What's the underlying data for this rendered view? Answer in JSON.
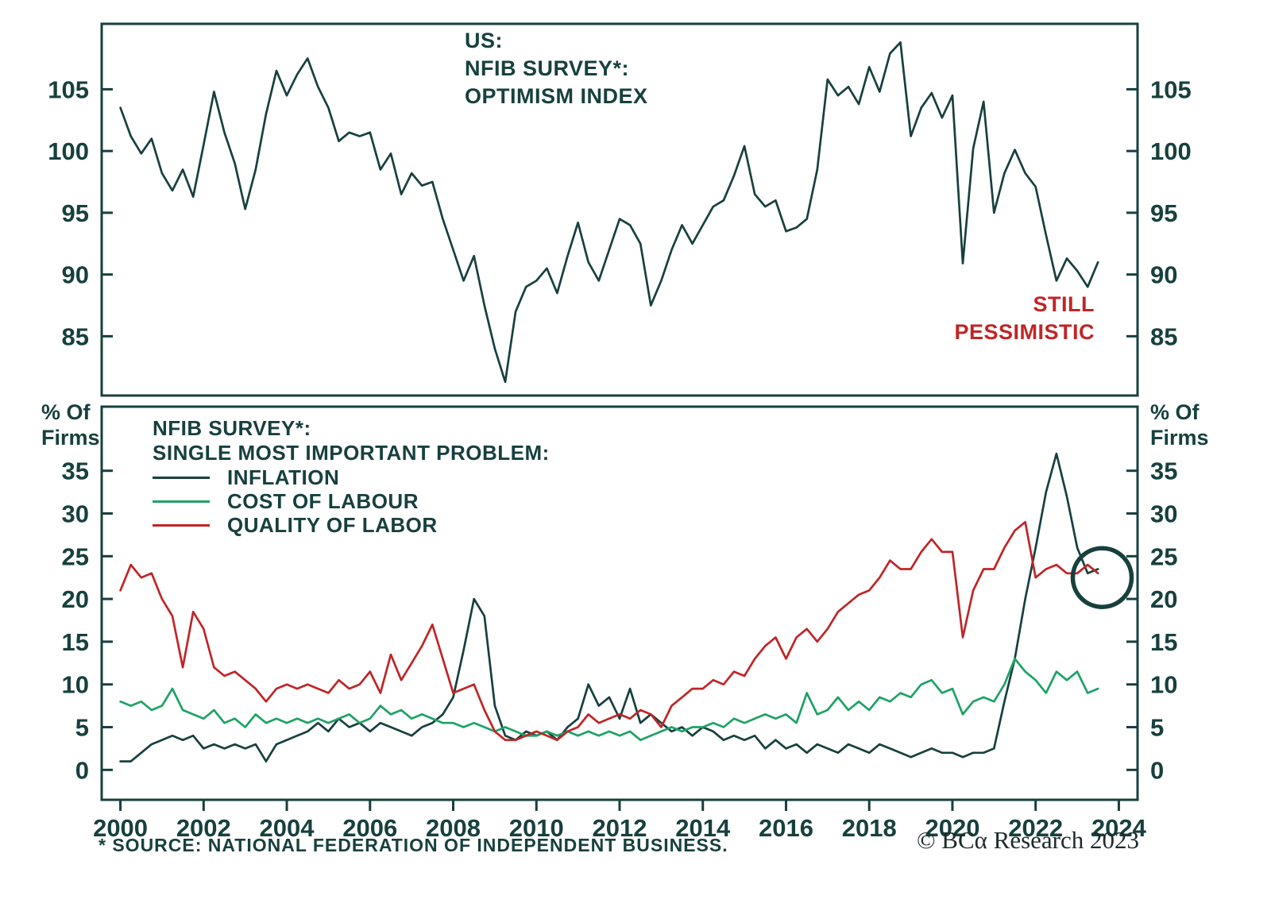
{
  "colors": {
    "dark": "#17403e",
    "green": "#1ea266",
    "red": "#c02527",
    "frame": "#17403e",
    "background": "#ffffff"
  },
  "footer": {
    "source": "* SOURCE: NATIONAL FEDERATION OF INDEPENDENT BUSINESS.",
    "credit": "© BCα Research 2023"
  },
  "chart_data": [
    {
      "type": "line",
      "title_lines": [
        "US:",
        "NFIB SURVEY*:",
        "OPTIMISM INDEX"
      ],
      "annotation": {
        "lines": [
          "STILL",
          "PESSIMISTIC"
        ],
        "color_key": "red",
        "position": "lower-right"
      },
      "xlim": [
        1999.55,
        2024.45
      ],
      "ylim": [
        80.2,
        110.3
      ],
      "yticks": [
        85,
        90,
        95,
        100,
        105
      ],
      "yticks_both_sides": true,
      "xticks": [
        2000,
        2002,
        2004,
        2006,
        2008,
        2010,
        2012,
        2014,
        2016,
        2018,
        2020,
        2022,
        2024
      ],
      "xticks_visible": false,
      "grid": false,
      "x_start": 2000,
      "x_step": 0.25,
      "series": [
        {
          "name": "NFIB OPTIMISM INDEX",
          "color_key": "dark",
          "values": [
            103.5,
            101.2,
            99.8,
            101.0,
            98.2,
            96.8,
            98.5,
            96.3,
            100.5,
            104.8,
            101.5,
            99.0,
            95.3,
            98.5,
            103.0,
            106.5,
            104.5,
            106.2,
            107.5,
            105.2,
            103.5,
            100.8,
            101.5,
            101.2,
            101.5,
            98.5,
            99.8,
            96.5,
            98.2,
            97.2,
            97.5,
            94.5,
            92.0,
            89.5,
            91.5,
            87.5,
            84.0,
            81.3,
            87.0,
            89.0,
            89.5,
            90.5,
            88.5,
            91.5,
            94.2,
            91.0,
            89.5,
            92.0,
            94.5,
            94.0,
            92.5,
            87.5,
            89.5,
            92.0,
            94.0,
            92.5,
            94.0,
            95.5,
            96.0,
            98.0,
            100.4,
            96.5,
            95.5,
            96.0,
            93.5,
            93.8,
            94.5,
            98.5,
            105.8,
            104.5,
            105.2,
            103.8,
            106.8,
            104.8,
            107.9,
            108.8,
            101.2,
            103.5,
            104.7,
            102.7,
            104.5,
            90.9,
            100.2,
            104.0,
            95.0,
            98.2,
            100.1,
            98.2,
            97.1,
            93.2,
            89.5,
            91.3,
            90.3,
            89.0,
            91.0
          ]
        }
      ]
    },
    {
      "type": "line",
      "legend_title_lines": [
        "NFIB SURVEY*:",
        "SINGLE MOST IMPORTANT PROBLEM:"
      ],
      "ylabel_lines": [
        "% Of",
        "Firms"
      ],
      "legend_position": "upper-left",
      "xlim": [
        1999.55,
        2024.45
      ],
      "ylim": [
        -3.5,
        42.5
      ],
      "yticks": [
        0,
        5,
        10,
        15,
        20,
        25,
        30,
        35
      ],
      "yticks_both_sides": true,
      "xticks": [
        2000,
        2002,
        2004,
        2006,
        2008,
        2010,
        2012,
        2014,
        2016,
        2018,
        2020,
        2022,
        2024
      ],
      "xticks_visible": true,
      "grid": false,
      "x_start": 2000,
      "x_step": 0.25,
      "circle_annotation": {
        "x": 2023.6,
        "y": 22.5,
        "radius_px": 37
      },
      "series": [
        {
          "name": "INFLATION",
          "color_key": "dark",
          "values": [
            1.0,
            1.0,
            2.0,
            3.0,
            3.5,
            4.0,
            3.5,
            4.0,
            2.5,
            3.0,
            2.5,
            3.0,
            2.5,
            3.0,
            1.0,
            3.0,
            3.5,
            4.0,
            4.5,
            5.5,
            4.5,
            6.0,
            5.0,
            5.5,
            4.5,
            5.5,
            5.0,
            4.5,
            4.0,
            5.0,
            5.5,
            6.5,
            8.5,
            14.0,
            20.0,
            18.0,
            7.5,
            4.0,
            3.5,
            4.5,
            4.0,
            4.5,
            3.5,
            5.0,
            6.0,
            10.0,
            7.5,
            8.5,
            6.0,
            9.5,
            5.5,
            6.5,
            5.5,
            4.5,
            5.0,
            4.0,
            5.0,
            4.5,
            3.5,
            4.0,
            3.5,
            4.0,
            2.5,
            3.5,
            2.5,
            3.0,
            2.0,
            3.0,
            2.5,
            2.0,
            3.0,
            2.5,
            2.0,
            3.0,
            2.5,
            2.0,
            1.5,
            2.0,
            2.5,
            2.0,
            2.0,
            1.5,
            2.0,
            2.0,
            2.5,
            8.0,
            13.0,
            20.0,
            26.0,
            32.5,
            37.0,
            32.0,
            26.0,
            23.0,
            23.5
          ]
        },
        {
          "name": "COST OF LABOUR",
          "color_key": "green",
          "values": [
            8.0,
            7.5,
            8.0,
            7.0,
            7.5,
            9.5,
            7.0,
            6.5,
            6.0,
            7.0,
            5.5,
            6.0,
            5.0,
            6.5,
            5.5,
            6.0,
            5.5,
            6.0,
            5.5,
            6.0,
            5.5,
            6.0,
            6.5,
            5.5,
            6.0,
            7.5,
            6.5,
            7.0,
            6.0,
            6.5,
            6.0,
            5.5,
            5.5,
            5.0,
            5.5,
            5.0,
            4.5,
            5.0,
            4.5,
            4.0,
            4.0,
            4.5,
            4.0,
            4.5,
            4.0,
            4.5,
            4.0,
            4.5,
            4.0,
            4.5,
            3.5,
            4.0,
            4.5,
            5.0,
            4.5,
            5.0,
            5.0,
            5.5,
            5.0,
            6.0,
            5.5,
            6.0,
            6.5,
            6.0,
            6.5,
            5.5,
            9.0,
            6.5,
            7.0,
            8.5,
            7.0,
            8.0,
            7.0,
            8.5,
            8.0,
            9.0,
            8.5,
            10.0,
            10.5,
            9.0,
            9.5,
            6.5,
            8.0,
            8.5,
            8.0,
            10.0,
            13.0,
            11.5,
            10.5,
            9.0,
            11.5,
            10.5,
            11.5,
            9.0,
            9.5
          ]
        },
        {
          "name": "QUALITY OF LABOR",
          "color_key": "red",
          "values": [
            21.0,
            24.0,
            22.5,
            23.0,
            20.0,
            18.0,
            12.0,
            18.5,
            16.5,
            12.0,
            11.0,
            11.5,
            10.5,
            9.5,
            8.0,
            9.5,
            10.0,
            9.5,
            10.0,
            9.5,
            9.0,
            10.5,
            9.5,
            10.0,
            11.5,
            9.0,
            13.5,
            10.5,
            12.5,
            14.5,
            17.0,
            13.0,
            9.0,
            9.5,
            10.0,
            7.0,
            4.5,
            3.5,
            3.5,
            4.0,
            4.5,
            4.0,
            3.5,
            4.5,
            5.0,
            6.5,
            5.5,
            6.0,
            6.5,
            6.0,
            7.0,
            6.5,
            5.0,
            7.5,
            8.5,
            9.5,
            9.5,
            10.5,
            10.0,
            11.5,
            11.0,
            13.0,
            14.5,
            15.5,
            13.0,
            15.5,
            16.5,
            15.0,
            16.5,
            18.5,
            19.5,
            20.5,
            21.0,
            22.5,
            24.5,
            23.5,
            23.5,
            25.5,
            27.0,
            25.5,
            25.5,
            15.5,
            21.0,
            23.5,
            23.5,
            26.0,
            28.0,
            29.0,
            22.5,
            23.5,
            24.0,
            23.0,
            23.0,
            24.0,
            23.0
          ]
        }
      ]
    }
  ]
}
